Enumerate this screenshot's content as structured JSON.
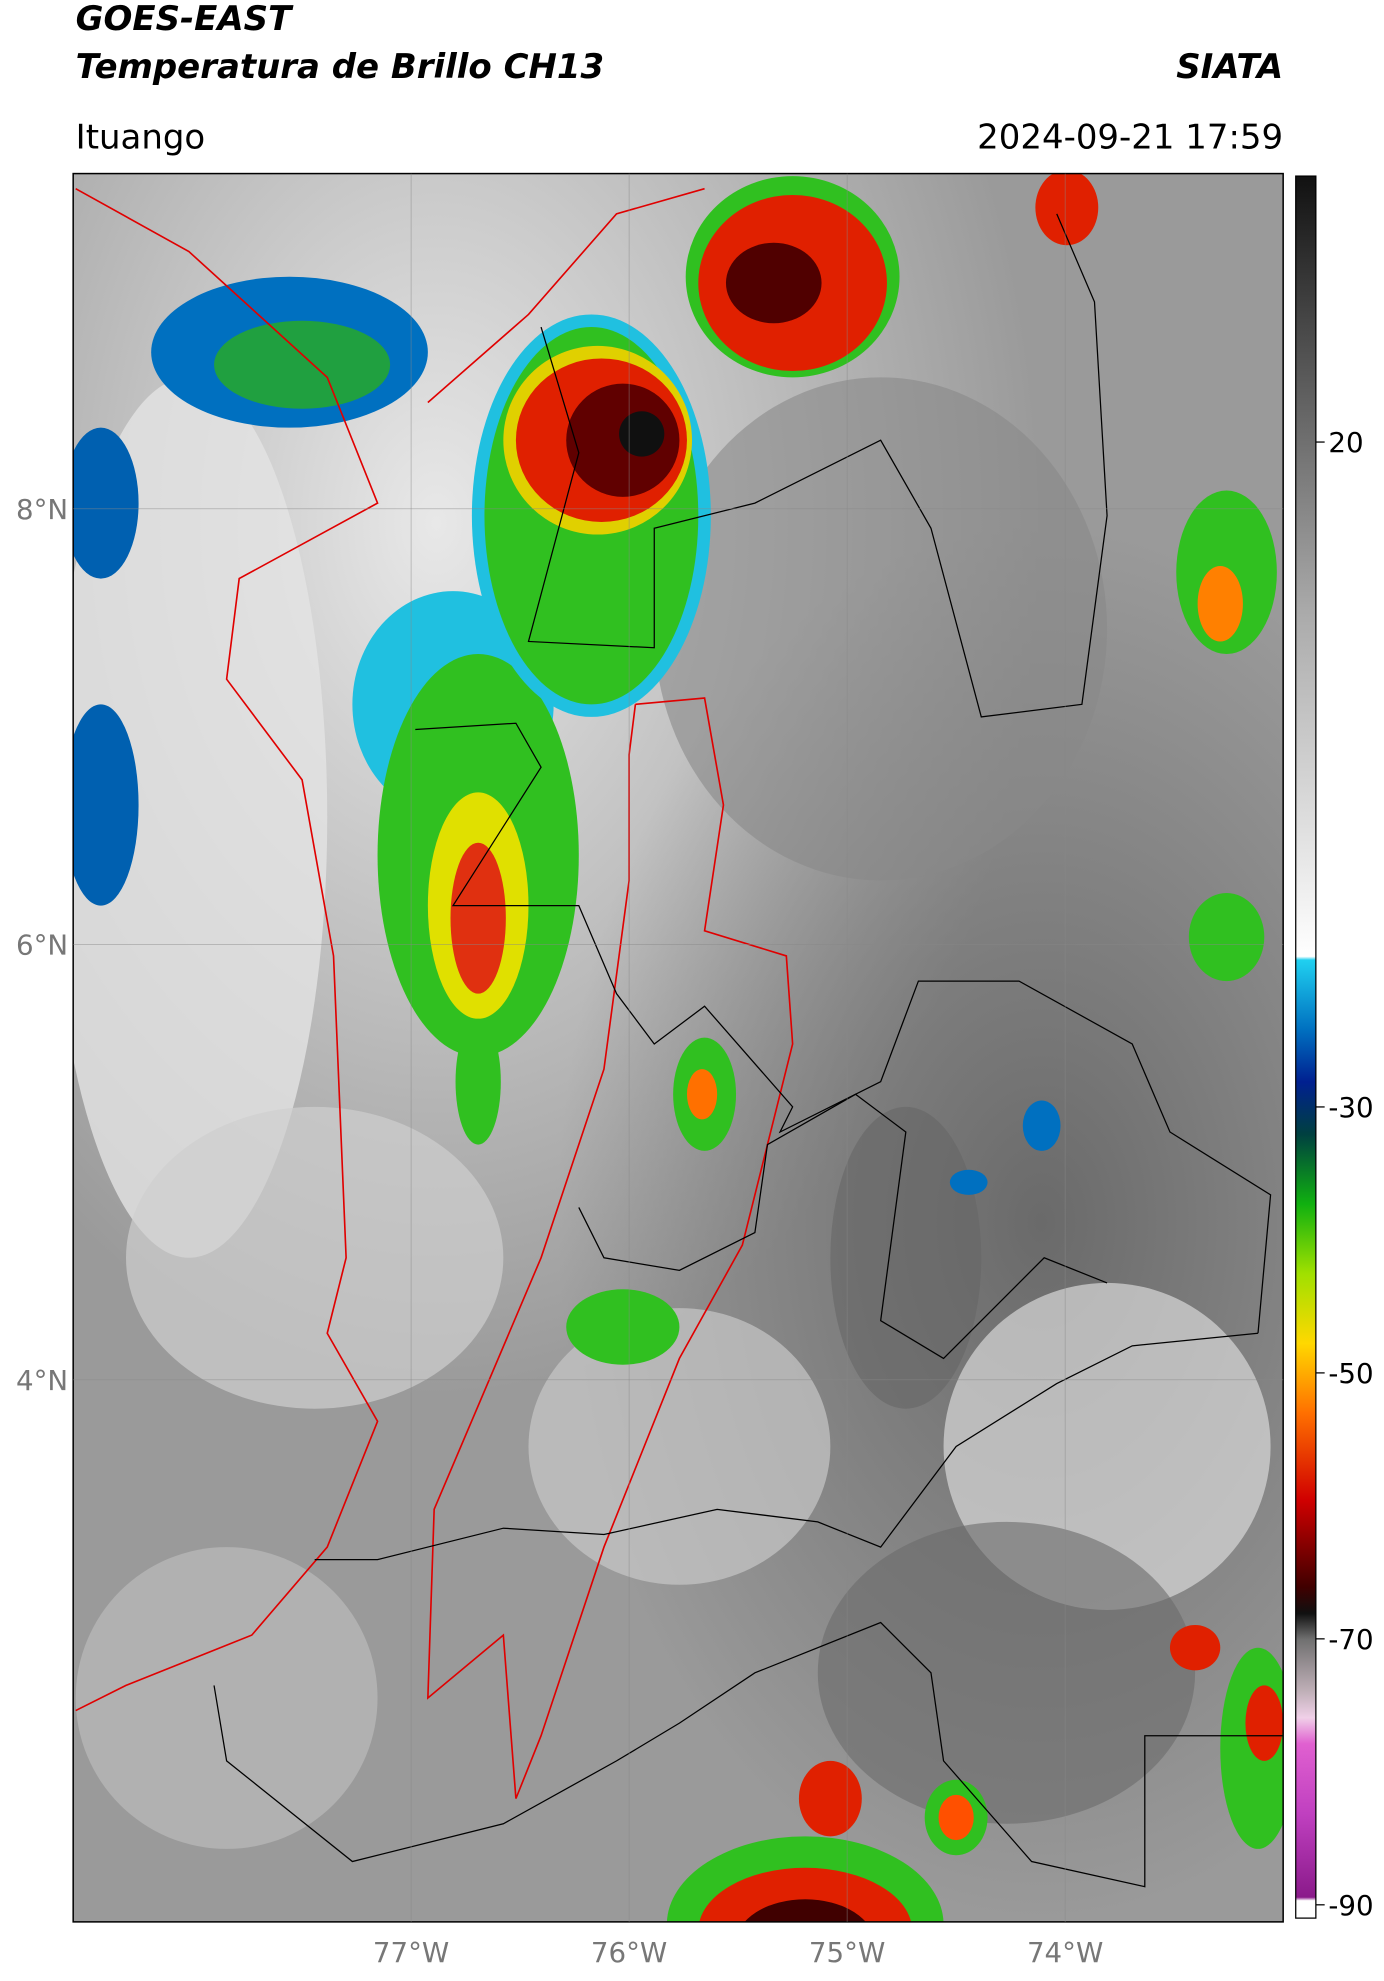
{
  "map": {
    "title": "GOES-EAST",
    "subtitle": "Temperatura de Brillo CH13",
    "source": "SIATA",
    "location": "Ituango",
    "datetime": "2024-09-21 17:59",
    "xlim": [
      -78.55,
      -73.0
    ],
    "ylim": [
      1.51,
      9.54
    ],
    "xticks": [
      {
        "value": -77,
        "label": "77°W"
      },
      {
        "value": -76,
        "label": "76°W"
      },
      {
        "value": -75,
        "label": "75°W"
      },
      {
        "value": -74,
        "label": "74°W"
      }
    ],
    "yticks": [
      {
        "value": 8,
        "label": "8°N"
      },
      {
        "value": 6,
        "label": "6°N"
      },
      {
        "value": 4,
        "label": "4°N"
      }
    ],
    "grid": true,
    "colorbar": {
      "clim": [
        -91,
        40
      ],
      "ticks": [
        20,
        -30,
        -50,
        -70,
        -90
      ]
    }
  }
}
